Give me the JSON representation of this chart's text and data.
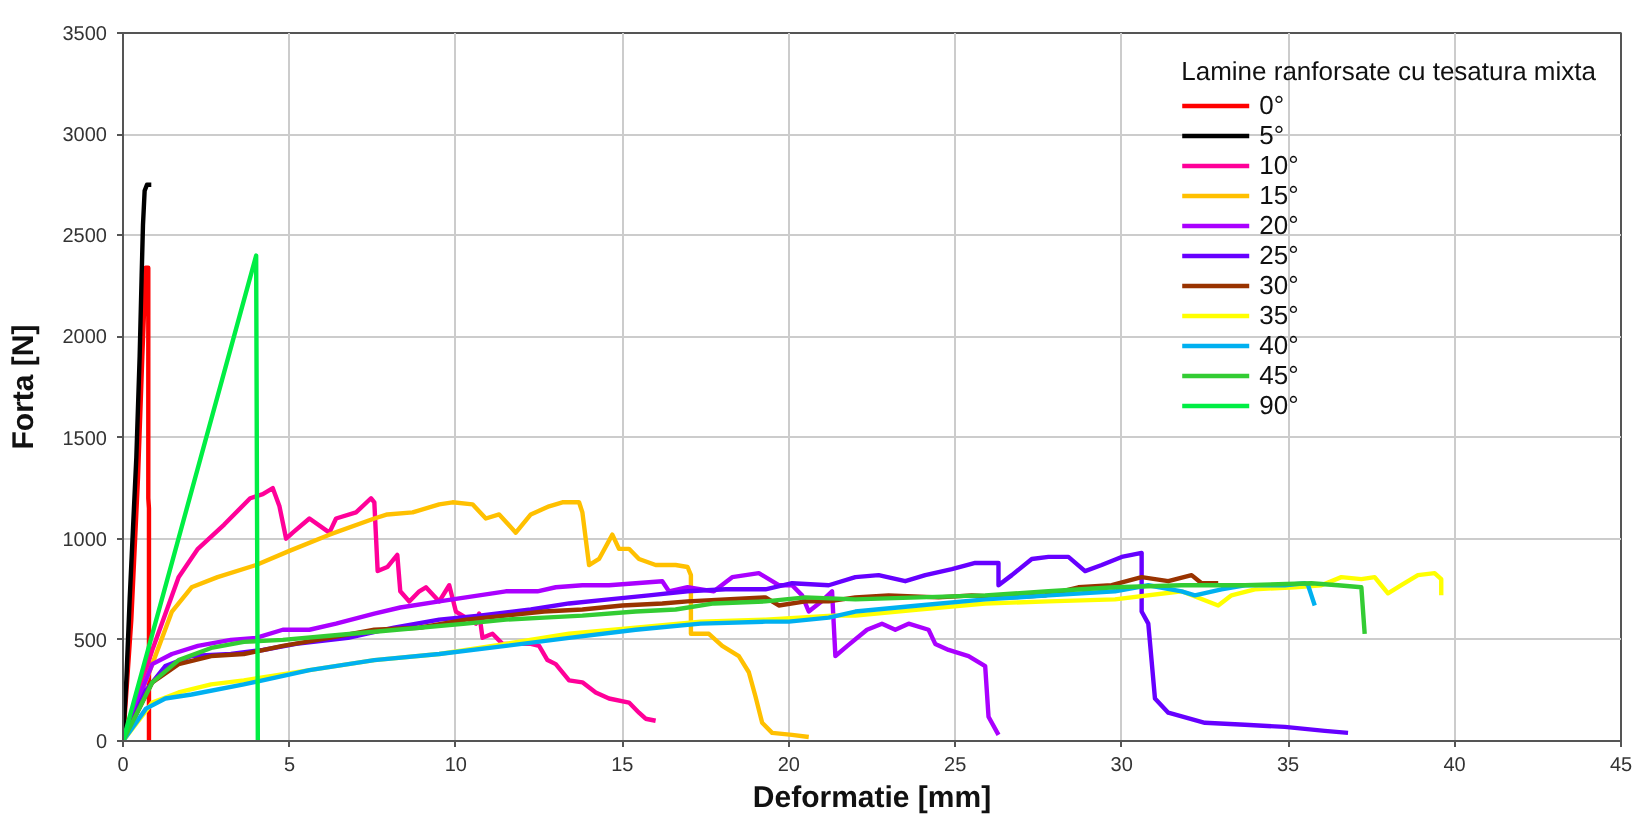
{
  "chart_data": {
    "type": "line",
    "xlabel": "Deformatie [mm]",
    "ylabel": "Forta [N]",
    "legend_title": "Lamine ranforsate cu tesatura mixta",
    "xlim": [
      0,
      45
    ],
    "ylim": [
      0,
      3500
    ],
    "xticks": [
      0,
      5,
      10,
      15,
      20,
      25,
      30,
      35,
      40,
      45
    ],
    "yticks": [
      0,
      500,
      1000,
      1500,
      2000,
      2500,
      3000,
      3500
    ],
    "grid": true,
    "legend": "top right",
    "line_style": "solid",
    "series": [
      {
        "name": "0°",
        "color": "#ff0000",
        "x": [
          0,
          0.25,
          0.45,
          0.58,
          0.65,
          0.68,
          0.76,
          0.76,
          0.78,
          0.78
        ],
        "values": [
          0,
          600,
          1300,
          1900,
          2200,
          2340,
          2340,
          1200,
          1150,
          0
        ]
      },
      {
        "name": "5°",
        "color": "#000000",
        "x": [
          0,
          0.1,
          0.2,
          0.3,
          0.4,
          0.5,
          0.56,
          0.6,
          0.65,
          0.72,
          0.85
        ],
        "values": [
          0,
          300,
          700,
          1050,
          1400,
          1900,
          2300,
          2550,
          2720,
          2750,
          2750
        ]
      },
      {
        "name": "10°",
        "color": "#ff0099",
        "x": [
          0,
          0.88,
          1.67,
          2.25,
          3.04,
          3.82,
          4.2,
          4.5,
          4.7,
          4.9,
          5.1,
          5.6,
          6.2,
          6.4,
          7.0,
          7.45,
          7.55,
          7.65,
          7.94,
          8.24,
          8.33,
          8.6,
          8.9,
          9.1,
          9.5,
          9.8,
          10.0,
          10.6,
          10.7,
          10.8,
          11.1,
          11.4,
          12.25,
          12.5,
          12.75,
          13.0,
          13.4,
          13.8,
          14.2,
          14.6,
          15.2,
          15.5,
          15.7,
          16.0
        ],
        "values": [
          0,
          450,
          810,
          950,
          1070,
          1200,
          1220,
          1250,
          1160,
          1000,
          1030,
          1100,
          1030,
          1100,
          1130,
          1200,
          1180,
          840,
          860,
          920,
          740,
          690,
          740,
          760,
          690,
          770,
          640,
          580,
          630,
          510,
          530,
          480,
          480,
          470,
          400,
          380,
          300,
          290,
          240,
          210,
          190,
          140,
          110,
          100
        ]
      },
      {
        "name": "15°",
        "color": "#ffc000",
        "x": [
          0,
          0.88,
          1.47,
          2.06,
          2.84,
          4.0,
          5.0,
          6.2,
          7.55,
          7.94,
          8.7,
          9.5,
          9.9,
          10.5,
          10.9,
          11.3,
          11.8,
          12.25,
          12.8,
          13.2,
          13.7,
          13.8,
          14.0,
          14.3,
          14.7,
          14.9,
          15.2,
          15.5,
          16.0,
          16.6,
          16.96,
          17.06,
          17.06,
          17.6,
          18.0,
          18.5,
          18.8,
          19.0,
          19.2,
          19.5,
          20.1,
          20.6
        ],
        "values": [
          0,
          380,
          640,
          760,
          810,
          870,
          940,
          1020,
          1100,
          1120,
          1130,
          1170,
          1180,
          1170,
          1100,
          1120,
          1030,
          1120,
          1160,
          1180,
          1180,
          1130,
          870,
          900,
          1020,
          950,
          950,
          900,
          870,
          870,
          860,
          820,
          530,
          530,
          470,
          420,
          340,
          220,
          90,
          40,
          30,
          20
        ]
      },
      {
        "name": "20°",
        "color": "#aa00ff",
        "x": [
          0,
          0.49,
          0.88,
          1.47,
          2.25,
          3.24,
          4.0,
          4.8,
          5.6,
          6.4,
          7.55,
          8.33,
          9.5,
          10.3,
          11.5,
          12.45,
          13.0,
          13.8,
          14.6,
          15.4,
          16.2,
          16.4,
          16.96,
          17.75,
          18.3,
          19.1,
          19.7,
          20.1,
          20.4,
          20.6,
          20.98,
          21.3,
          21.4,
          21.76,
          22.35,
          22.8,
          23.2,
          23.6,
          24.2,
          24.4,
          24.8,
          25.4,
          25.9,
          26.0,
          26.3
        ],
        "values": [
          0,
          220,
          380,
          430,
          470,
          500,
          510,
          550,
          550,
          580,
          630,
          660,
          690,
          710,
          740,
          740,
          760,
          770,
          770,
          780,
          790,
          740,
          760,
          740,
          810,
          830,
          770,
          770,
          720,
          640,
          690,
          740,
          420,
          470,
          550,
          580,
          550,
          580,
          550,
          480,
          450,
          420,
          370,
          120,
          30
        ]
      },
      {
        "name": "25°",
        "color": "#6600ff",
        "x": [
          0,
          0.69,
          1.27,
          2.06,
          3.24,
          4.2,
          5.2,
          6.76,
          8.14,
          9.5,
          10.7,
          12.25,
          13.4,
          14.6,
          15.8,
          16.96,
          18.1,
          19.3,
          20.1,
          21.2,
          22.0,
          22.7,
          23.5,
          24.1,
          24.9,
          25.6,
          26.3,
          26.3,
          26.7,
          27.3,
          27.8,
          28.4,
          28.9,
          29.4,
          30.0,
          30.6,
          30.6,
          30.8,
          31.0,
          31.4,
          32.5,
          33.7,
          34.9,
          36.1,
          36.8
        ],
        "values": [
          0,
          250,
          370,
          420,
          430,
          450,
          480,
          510,
          560,
          600,
          620,
          650,
          680,
          700,
          720,
          740,
          750,
          750,
          780,
          770,
          810,
          820,
          790,
          820,
          850,
          880,
          880,
          770,
          820,
          900,
          910,
          910,
          840,
          870,
          910,
          930,
          640,
          580,
          210,
          140,
          90,
          80,
          70,
          50,
          40
        ]
      },
      {
        "name": "30°",
        "color": "#993300",
        "x": [
          0,
          0.88,
          1.67,
          2.65,
          3.63,
          4.8,
          6.2,
          7.55,
          8.9,
          10.3,
          11.5,
          12.65,
          13.8,
          15.0,
          16.2,
          16.96,
          18.1,
          19.3,
          19.7,
          20.5,
          21.2,
          22.0,
          23.0,
          24.5,
          25.5,
          26.7,
          27.7,
          28.7,
          29.7,
          30.6,
          31.4,
          32.1,
          32.4,
          32.9
        ],
        "values": [
          0,
          290,
          380,
          420,
          430,
          470,
          510,
          550,
          560,
          600,
          620,
          640,
          650,
          670,
          680,
          690,
          700,
          710,
          670,
          690,
          690,
          710,
          720,
          710,
          720,
          710,
          720,
          760,
          770,
          810,
          790,
          820,
          780,
          780
        ]
      },
      {
        "name": "35°",
        "color": "#ffff00",
        "x": [
          0,
          0.88,
          1.67,
          2.65,
          3.63,
          5.6,
          7.55,
          9.5,
          11.5,
          13.4,
          15.4,
          17.35,
          19.3,
          21.3,
          22.0,
          23.9,
          25.9,
          27.8,
          29.8,
          31.8,
          32.9,
          33.3,
          34.0,
          35.2,
          36.0,
          36.6,
          37.2,
          37.6,
          37.8,
          38.0,
          38.4,
          38.9,
          39.4,
          39.6,
          39.6
        ],
        "values": [
          0,
          190,
          240,
          280,
          300,
          350,
          400,
          430,
          480,
          530,
          560,
          590,
          600,
          620,
          620,
          650,
          680,
          690,
          700,
          740,
          670,
          720,
          750,
          760,
          770,
          810,
          800,
          810,
          770,
          730,
          770,
          820,
          830,
          800,
          720
        ]
      },
      {
        "name": "40°",
        "color": "#00b0f0",
        "x": [
          0,
          0.69,
          1.27,
          2.06,
          3.63,
          5.6,
          7.55,
          9.5,
          11.5,
          13.4,
          15.4,
          17.35,
          19.3,
          20.0,
          21.2,
          22.0,
          23.9,
          25.9,
          27.8,
          29.8,
          30.8,
          31.8,
          32.2,
          33.0,
          33.7,
          34.9,
          35.5,
          35.6,
          35.7,
          35.8
        ],
        "values": [
          0,
          160,
          210,
          230,
          280,
          350,
          400,
          430,
          470,
          510,
          550,
          580,
          590,
          590,
          610,
          640,
          670,
          700,
          720,
          740,
          770,
          740,
          720,
          750,
          770,
          770,
          780,
          770,
          720,
          670
        ]
      },
      {
        "name": "45°",
        "color": "#33cc33",
        "x": [
          0,
          0.88,
          1.67,
          2.65,
          3.63,
          4.8,
          6.2,
          7.55,
          8.9,
          10.3,
          11.5,
          12.65,
          13.8,
          15.4,
          16.6,
          17.75,
          19.3,
          20.5,
          22.0,
          23.9,
          25.9,
          27.8,
          29.8,
          31.8,
          33.7,
          35.7,
          36.5,
          37.2,
          37.3
        ],
        "values": [
          0,
          290,
          400,
          460,
          490,
          500,
          520,
          540,
          560,
          580,
          600,
          610,
          620,
          640,
          650,
          680,
          690,
          710,
          700,
          710,
          720,
          740,
          760,
          770,
          770,
          780,
          770,
          760,
          530
        ]
      },
      {
        "name": "90°",
        "color": "#00ee44",
        "x": [
          0,
          4.0,
          4.05
        ],
        "values": [
          0,
          2400,
          0
        ]
      }
    ]
  }
}
